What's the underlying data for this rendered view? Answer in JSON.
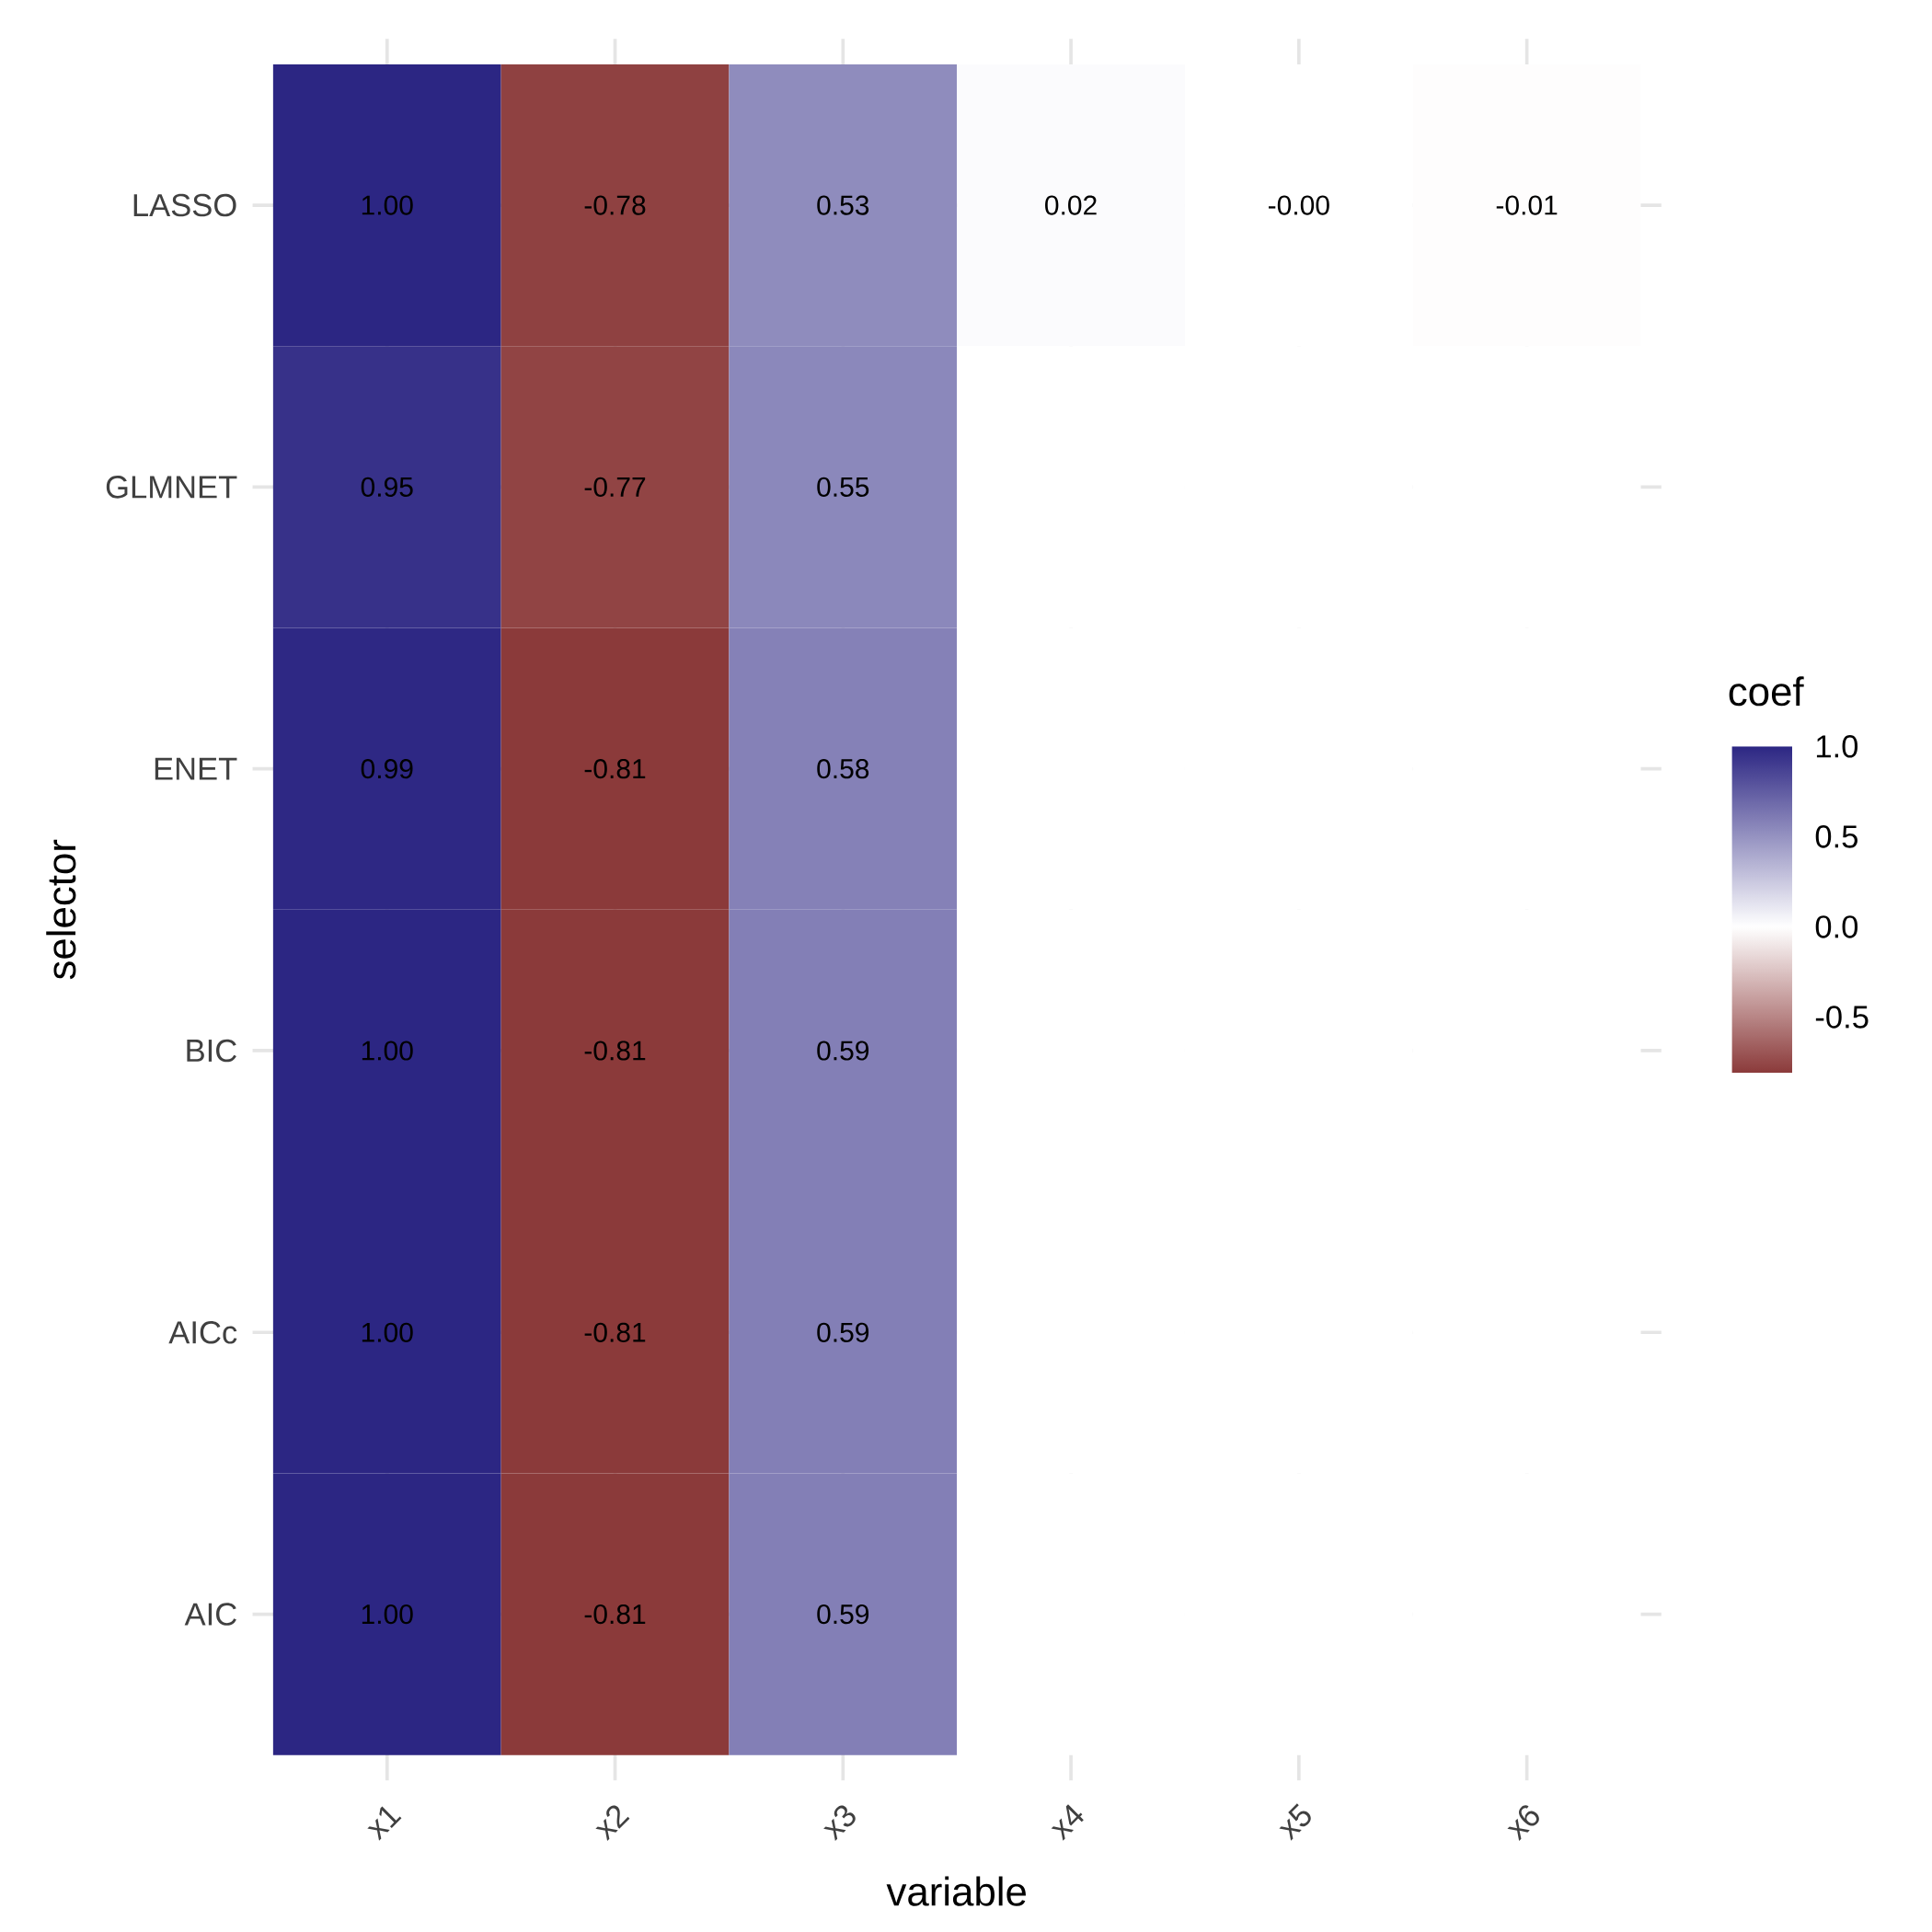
{
  "chart_data": {
    "type": "heatmap",
    "xlabel": "variable",
    "ylabel": "selector",
    "clabel": "coef",
    "categories": [
      "x1",
      "x2",
      "x3",
      "x4",
      "x5",
      "x6"
    ],
    "y_categories": [
      "LASSO",
      "GLMNET",
      "ENET",
      "BIC",
      "AICc",
      "AIC"
    ],
    "cells": [
      [
        1.0,
        -0.78,
        0.53,
        0.02,
        0.0,
        -0.01
      ],
      [
        0.95,
        -0.77,
        0.55,
        null,
        null,
        null
      ],
      [
        0.99,
        -0.81,
        0.58,
        null,
        null,
        null
      ],
      [
        1.0,
        -0.81,
        0.59,
        null,
        null,
        null
      ],
      [
        1.0,
        -0.81,
        0.59,
        null,
        null,
        null
      ],
      [
        1.0,
        -0.81,
        0.59,
        null,
        null,
        null
      ]
    ],
    "cell_labels": [
      [
        "1.00",
        "-0.78",
        "0.53",
        "0.02",
        "-0.00",
        "-0.01"
      ],
      [
        "0.95",
        "-0.77",
        "0.55",
        null,
        null,
        null
      ],
      [
        "0.99",
        "-0.81",
        "0.58",
        null,
        null,
        null
      ],
      [
        "1.00",
        "-0.81",
        "0.59",
        null,
        null,
        null
      ],
      [
        "1.00",
        "-0.81",
        "0.59",
        null,
        null,
        null
      ],
      [
        "1.00",
        "-0.81",
        "0.59",
        null,
        null,
        null
      ]
    ],
    "clim": [
      -0.81,
      1.0
    ],
    "cticks": [
      {
        "value": -0.5,
        "label": "-0.5"
      },
      {
        "value": 0,
        "label": "0.0"
      },
      {
        "value": 0.5,
        "label": "0.5"
      },
      {
        "value": 1,
        "label": "1.0"
      }
    ],
    "grid": true
  }
}
